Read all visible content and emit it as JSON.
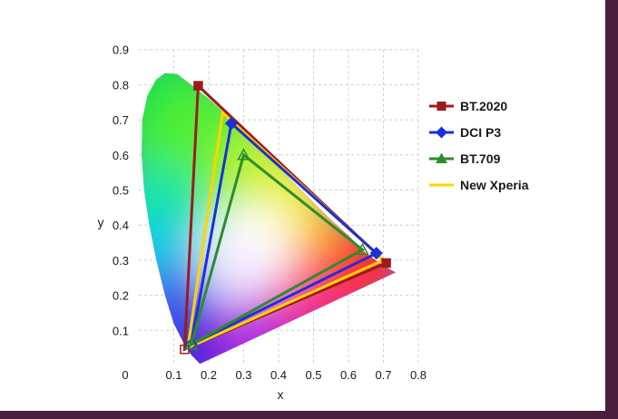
{
  "colors": {
    "frame": "#4a1f3d",
    "grid": "#cfcfcf"
  },
  "chart_data": {
    "type": "line",
    "xlabel": "x",
    "ylabel": "y",
    "xlim": [
      0,
      0.8
    ],
    "ylim": [
      0,
      0.9
    ],
    "xticks": [
      "0",
      "0.1",
      "0.2",
      "0.3",
      "0.4",
      "0.5",
      "0.6",
      "0.7",
      "0.8"
    ],
    "yticks": [
      "0.1",
      "0.2",
      "0.3",
      "0.4",
      "0.5",
      "0.6",
      "0.7",
      "0.8",
      "0.9"
    ],
    "xtick_values": [
      0,
      0.1,
      0.2,
      0.3,
      0.4,
      0.5,
      0.6,
      0.7,
      0.8
    ],
    "ytick_values": [
      0.1,
      0.2,
      0.3,
      0.4,
      0.5,
      0.6,
      0.7,
      0.8,
      0.9
    ],
    "grid": true,
    "legend_position": "right",
    "series": [
      {
        "name": "BT.2020",
        "color": "#9b1c1c",
        "marker": "square",
        "points": [
          [
            0.708,
            0.292
          ],
          [
            0.17,
            0.797
          ],
          [
            0.131,
            0.046
          ]
        ]
      },
      {
        "name": "DCI P3",
        "color": "#1f2fd6",
        "marker": "diamond",
        "points": [
          [
            0.68,
            0.32
          ],
          [
            0.265,
            0.69
          ],
          [
            0.15,
            0.06
          ]
        ]
      },
      {
        "name": "BT.709",
        "color": "#2e8b2e",
        "marker": "triangle",
        "points": [
          [
            0.64,
            0.33
          ],
          [
            0.3,
            0.6
          ],
          [
            0.15,
            0.06
          ]
        ]
      },
      {
        "name": "New Xperia",
        "color": "#ffd400",
        "marker": "none",
        "points": [
          [
            0.7,
            0.3
          ],
          [
            0.24,
            0.72
          ],
          [
            0.14,
            0.05
          ]
        ]
      }
    ]
  }
}
